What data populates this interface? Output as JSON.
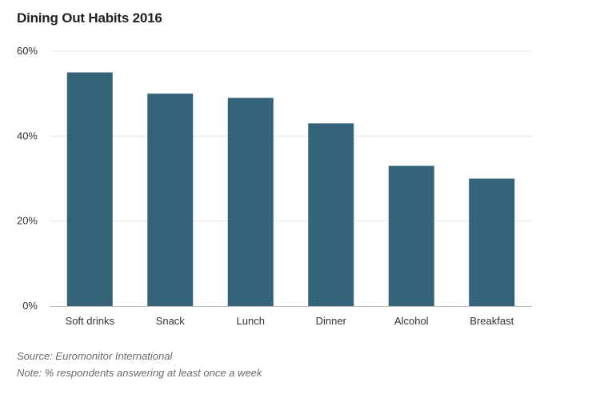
{
  "chart_data": {
    "type": "bar",
    "title": "Dining Out Habits 2016",
    "categories": [
      "Soft drinks",
      "Snack",
      "Lunch",
      "Dinner",
      "Alcohol",
      "Breakfast"
    ],
    "values": [
      55,
      50,
      49,
      43,
      33,
      30
    ],
    "unit": "%",
    "ylim": [
      0,
      60
    ],
    "yticks": [
      0,
      20,
      40,
      60
    ],
    "ytick_labels": [
      "0%",
      "20%",
      "40%",
      "60%"
    ],
    "xlabel": "",
    "ylabel": "",
    "grid": true,
    "bar_color": "#35637a"
  },
  "footer": {
    "source": "Source: Euromonitor International",
    "note": "Note: % respondents answering at least once a week"
  }
}
